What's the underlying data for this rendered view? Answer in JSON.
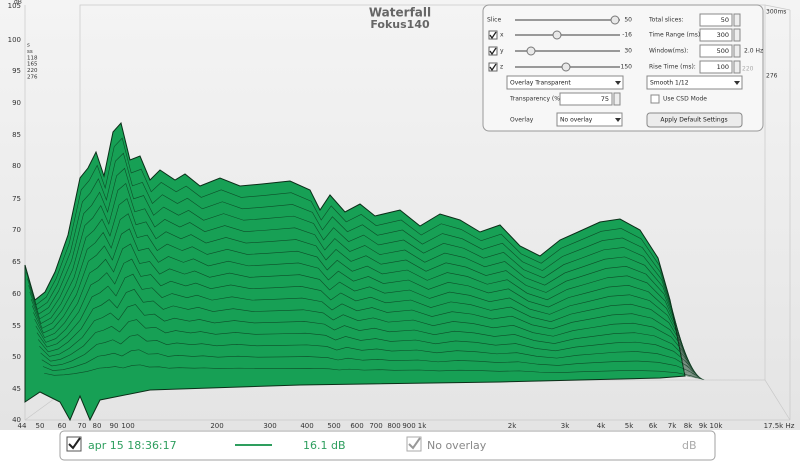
{
  "plot": {
    "title": "Waterfall",
    "subtitle": "Fokus140",
    "y_unit": "dB",
    "y_labels": [
      105,
      100,
      95,
      90,
      85,
      80,
      75,
      70,
      65,
      60,
      55,
      50,
      45,
      40
    ],
    "x_labels": [
      "44",
      "50",
      "60",
      "70",
      "80",
      "90",
      "100",
      "200",
      "300",
      "400",
      "500",
      "600",
      "700",
      "800",
      "900",
      "1k",
      "2k",
      "3k",
      "4k",
      "5k",
      "6k",
      "7k",
      "8k",
      "9k",
      "10k",
      "17.5k Hz"
    ],
    "depth_label": "300ms",
    "depth_right": "276",
    "depth_left": [
      "s",
      "ss",
      "118",
      "165",
      "220",
      "276"
    ]
  },
  "controls": {
    "slice": {
      "label": "Slice",
      "value": 50
    },
    "x": {
      "label": "x",
      "value": -16
    },
    "y": {
      "label": "y",
      "value": 30
    },
    "z": {
      "label": "z",
      "value": 150
    },
    "total_slices": {
      "label": "Total slices:",
      "value": 50
    },
    "time_range": {
      "label": "Time Range (ms):",
      "value": 300
    },
    "window": {
      "label": "Window(ms):",
      "value": 500,
      "resolution": "2.0 Hz"
    },
    "rise_time": {
      "label": "Rise Time (ms):",
      "value": 100,
      "extra": "220"
    },
    "overlay_mode": "Overlay Transparent",
    "smoothing": "Smooth 1/12",
    "transparency": {
      "label": "Transparency (%)",
      "value": 75
    },
    "csd_mode": "Use CSD Mode",
    "overlay": {
      "label": "Overlay",
      "value": "No overlay"
    },
    "apply_button": "Apply Default Settings"
  },
  "legend": {
    "measurement": "apr 15 18:36:17",
    "level": "16.1 dB",
    "overlay": "No overlay",
    "unit": "dB"
  }
}
